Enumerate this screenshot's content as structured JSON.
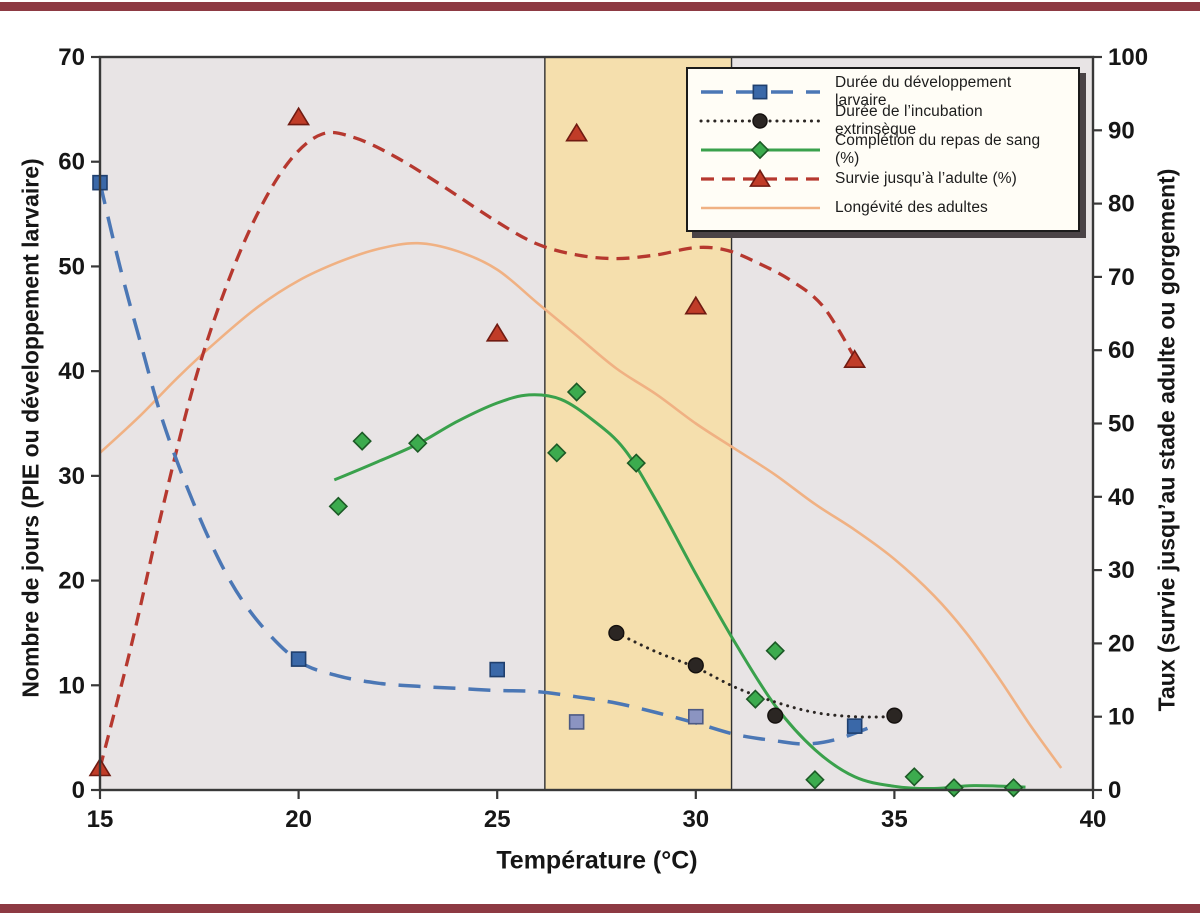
{
  "figure": {
    "top_bar_color": "#8d3a43",
    "bottom_bar_color": "#8d3a43",
    "background": "#ffffff"
  },
  "chart_data": {
    "type": "line",
    "xlabel": "Température (°C)",
    "ylabel_left": "Nombre de jours (PIE ou développement larvaire)",
    "ylabel_right": "Taux (survie jusqu’au stade adulte ou gorgement)",
    "x_range": [
      15,
      40
    ],
    "y_left_range": [
      0,
      70
    ],
    "y_right_range": [
      0,
      100
    ],
    "x_ticks": [
      15,
      20,
      25,
      30,
      35,
      40
    ],
    "y_left_ticks": [
      0,
      10,
      20,
      30,
      40,
      50,
      60,
      70
    ],
    "y_right_ticks": [
      0,
      10,
      20,
      30,
      40,
      50,
      60,
      70,
      80,
      90,
      100
    ],
    "plot_bg": "#e8e4e5",
    "frame_color": "#383838",
    "tick_label_color": "#161616",
    "band": {
      "x_start": 26.2,
      "x_end": 30.9,
      "color": "#f5dfad",
      "edge_color": "#2f2f2f"
    },
    "legend_position": "top-right",
    "grid": false,
    "series": [
      {
        "name": "Longévité des adultes",
        "axis": "right",
        "style": "solid",
        "color": "#f0b183",
        "width": 2.6,
        "marker": "none",
        "curve": [
          [
            15,
            46
          ],
          [
            16,
            51
          ],
          [
            17,
            56.5
          ],
          [
            18,
            61.5
          ],
          [
            19,
            66
          ],
          [
            20,
            69.5
          ],
          [
            21,
            72
          ],
          [
            22,
            73.8
          ],
          [
            23,
            74.6
          ],
          [
            24,
            73.5
          ],
          [
            25,
            71
          ],
          [
            26,
            66.5
          ],
          [
            27,
            62
          ],
          [
            28,
            57.5
          ],
          [
            29,
            54
          ],
          [
            30,
            50
          ],
          [
            31,
            46.5
          ],
          [
            32,
            43
          ],
          [
            33,
            39
          ],
          [
            34,
            35.5
          ],
          [
            35,
            31.5
          ],
          [
            36,
            26.5
          ],
          [
            36.8,
            21.5
          ],
          [
            37.6,
            15.5
          ],
          [
            38.4,
            9
          ],
          [
            39.2,
            3
          ]
        ],
        "points": []
      },
      {
        "name": "Survie jusqu’à l’adulte (%)",
        "axis": "right",
        "style": "dashed",
        "dash": "13 8",
        "color": "#b6382f",
        "width": 3.3,
        "marker": "triangle",
        "marker_fill": "#c03c28",
        "marker_edge": "#701b12",
        "curve": [
          [
            15,
            3
          ],
          [
            15.8,
            20
          ],
          [
            16.6,
            39
          ],
          [
            17.4,
            56
          ],
          [
            18.2,
            69
          ],
          [
            19,
            79
          ],
          [
            19.8,
            86
          ],
          [
            20.6,
            89.5
          ],
          [
            21.4,
            89
          ],
          [
            22.4,
            86.5
          ],
          [
            23.6,
            82.5
          ],
          [
            25,
            77.5
          ],
          [
            26,
            74.5
          ],
          [
            27,
            73
          ],
          [
            28,
            72.5
          ],
          [
            29,
            73
          ],
          [
            30,
            74
          ],
          [
            30.8,
            73.6
          ],
          [
            31.6,
            71.8
          ],
          [
            32.4,
            69.5
          ],
          [
            33.2,
            66
          ],
          [
            34,
            59
          ]
        ],
        "points": [
          [
            15,
            3
          ],
          [
            20,
            91.8
          ],
          [
            25,
            62.3
          ],
          [
            27,
            89.6
          ],
          [
            30,
            66
          ],
          [
            34,
            58.7
          ]
        ]
      },
      {
        "name": "Complétion du repas de sang (%)",
        "axis": "right",
        "style": "solid",
        "color": "#3aa14c",
        "width": 3,
        "marker": "diamond",
        "marker_fill": "#3cab4e",
        "marker_edge": "#1c5a26",
        "curve": [
          [
            20.9,
            42.3
          ],
          [
            22,
            44.8
          ],
          [
            23,
            47.2
          ],
          [
            24,
            50.3
          ],
          [
            25,
            52.8
          ],
          [
            25.8,
            53.9
          ],
          [
            26.6,
            53.3
          ],
          [
            27.4,
            50.5
          ],
          [
            28.2,
            46.5
          ],
          [
            29,
            39.5
          ],
          [
            30,
            29.5
          ],
          [
            31,
            20
          ],
          [
            32,
            11.5
          ],
          [
            33,
            5.5
          ],
          [
            34,
            1.8
          ],
          [
            35,
            0.5
          ],
          [
            36,
            0.2
          ],
          [
            37,
            0.6
          ],
          [
            38.3,
            0.4
          ]
        ],
        "points": [
          [
            21,
            38.7
          ],
          [
            21.6,
            47.6
          ],
          [
            23,
            47.3
          ],
          [
            26.5,
            46
          ],
          [
            27,
            54.3
          ],
          [
            28.5,
            44.6
          ],
          [
            31.5,
            12.4
          ],
          [
            32,
            19
          ],
          [
            33,
            1.4
          ],
          [
            35.5,
            1.8
          ],
          [
            36.5,
            0.3
          ],
          [
            38,
            0.3
          ]
        ]
      },
      {
        "name": "Durée du développement larvaire",
        "axis": "left",
        "style": "dashed",
        "dash": "22 13",
        "color": "#4b77b5",
        "width": 3.5,
        "marker": "square",
        "marker_fill": "#3a68a8",
        "marker_edge": "#1f3f6e",
        "marker_fill_alt": "#8b94c1",
        "marker_edge_alt": "#4d5a84",
        "curve": [
          [
            15,
            58
          ],
          [
            15.5,
            50
          ],
          [
            16,
            43
          ],
          [
            16.6,
            35
          ],
          [
            17.4,
            27
          ],
          [
            18.2,
            20.5
          ],
          [
            19,
            16
          ],
          [
            20,
            12.3
          ],
          [
            21,
            10.9
          ],
          [
            22,
            10.2
          ],
          [
            23,
            9.9
          ],
          [
            24,
            9.7
          ],
          [
            25,
            9.5
          ],
          [
            26,
            9.4
          ],
          [
            27,
            8.9
          ],
          [
            28,
            8.3
          ],
          [
            29,
            7.4
          ],
          [
            30,
            6.4
          ],
          [
            31,
            5.3
          ],
          [
            32,
            4.7
          ],
          [
            32.8,
            4.4
          ],
          [
            33.6,
            4.9
          ],
          [
            34.6,
            6.3
          ]
        ],
        "points": [
          [
            15,
            58
          ],
          [
            20,
            12.5
          ],
          [
            25,
            11.5
          ],
          [
            27,
            6.5,
            "alt"
          ],
          [
            30,
            7,
            "alt"
          ],
          [
            34,
            6.1
          ]
        ]
      },
      {
        "name": "Durée de l’incubation extrinsèque",
        "axis": "left",
        "style": "dotted",
        "dash": "0.1 6.8",
        "color": "#2b2623",
        "width": 3,
        "marker": "circle",
        "marker_fill": "#2b2623",
        "marker_edge": "#14100e",
        "curve": [
          [
            28,
            15
          ],
          [
            29,
            13.2
          ],
          [
            30,
            11.7
          ],
          [
            31,
            9.8
          ],
          [
            32,
            8.4
          ],
          [
            33,
            7.4
          ],
          [
            34,
            7.0
          ],
          [
            35,
            7.0
          ]
        ],
        "points": [
          [
            28,
            15
          ],
          [
            30,
            11.9
          ],
          [
            32,
            7.1
          ],
          [
            35,
            7.1
          ]
        ]
      }
    ],
    "legend_order": [
      3,
      4,
      2,
      1,
      0
    ]
  }
}
